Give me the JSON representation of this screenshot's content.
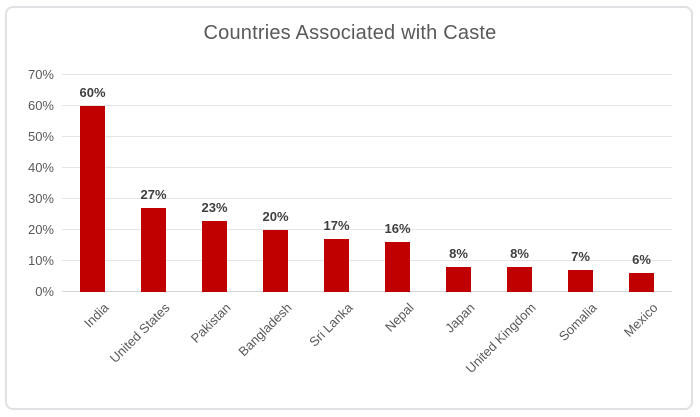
{
  "chart_data": {
    "type": "bar",
    "title": "Countries Associated with Caste",
    "categories": [
      "India",
      "United States",
      "Pakistan",
      "Bangladesh",
      "Sri Lanka",
      "Nepal",
      "Japan",
      "United Kingdom",
      "Somalia",
      "Mexico"
    ],
    "values": [
      60,
      27,
      23,
      20,
      17,
      16,
      8,
      8,
      7,
      6
    ],
    "data_labels": [
      "60%",
      "27%",
      "23%",
      "20%",
      "17%",
      "16%",
      "8%",
      "8%",
      "7%",
      "6%"
    ],
    "xlabel": "",
    "ylabel": "",
    "ylim": [
      0,
      70
    ],
    "yticks": [
      0,
      10,
      20,
      30,
      40,
      50,
      60,
      70
    ],
    "ytick_labels": [
      "0%",
      "10%",
      "20%",
      "30%",
      "40%",
      "50%",
      "60%",
      "70%"
    ],
    "grid": true,
    "legend": "none",
    "bar_color": "#c00000"
  },
  "colors": {
    "bar": "#c00000",
    "title_text": "#595959",
    "axis_text": "#595959",
    "value_label_text": "#3f3f3f",
    "gridline": "#e5e5e5",
    "baseline": "#d4d4d4",
    "frame_border": "#e1e1e5",
    "background": "#ffffff"
  }
}
